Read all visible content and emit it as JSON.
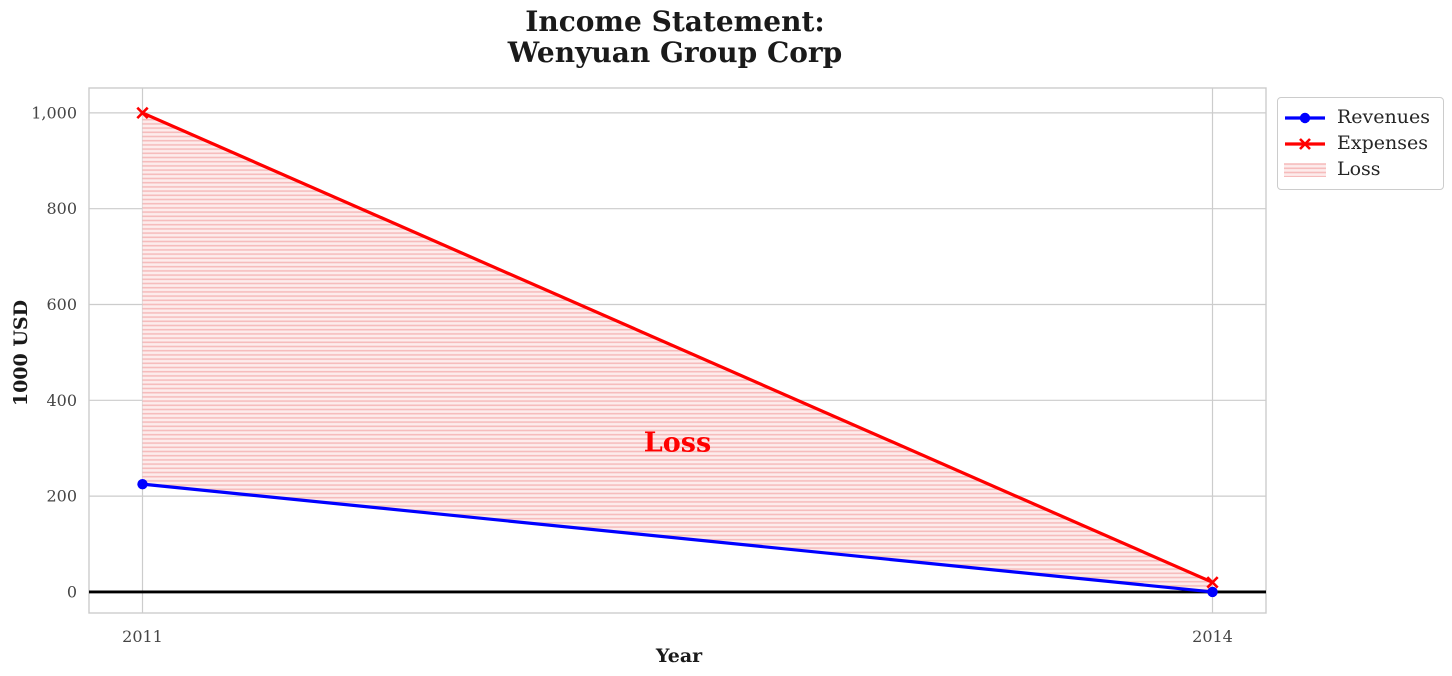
{
  "title": {
    "line1": "Income Statement:",
    "line2": "Wenyuan Group Corp"
  },
  "chart_data": {
    "type": "line",
    "title": "Income Statement: Wenyuan Group Corp",
    "xlabel": "Year",
    "ylabel": "1000 USD",
    "x": [
      2011,
      2014
    ],
    "xtick_labels": [
      "2011",
      "2014"
    ],
    "yticks": [
      0,
      200,
      400,
      600,
      800,
      1000
    ],
    "ytick_labels": [
      "0",
      "200",
      "400",
      "600",
      "800",
      "1,000"
    ],
    "xlim": [
      2010.85,
      2014.15
    ],
    "ylim": [
      -44,
      1052
    ],
    "grid": true,
    "grid_color": "#cccccc",
    "zero_line": {
      "y": 0,
      "color": "#000000"
    },
    "series": [
      {
        "name": "Revenues",
        "color": "#0000ff",
        "marker": "circle",
        "values": [
          225,
          0
        ]
      },
      {
        "name": "Expenses",
        "color": "#ff0000",
        "marker": "x",
        "values": [
          1000,
          20
        ]
      }
    ],
    "loss_area": {
      "label": "Loss",
      "between": [
        "Expenses",
        "Revenues"
      ],
      "fill_color": "#fdecec",
      "hatch_color": "#f6bcbc",
      "hatch": "horizontal",
      "annotation": {
        "text": "Loss",
        "x": 2012.5,
        "y": 310,
        "color": "#ff0000"
      }
    },
    "legend": {
      "location": "upper right, outside axes",
      "entries": [
        "Revenues",
        "Expenses",
        "Loss"
      ]
    }
  }
}
